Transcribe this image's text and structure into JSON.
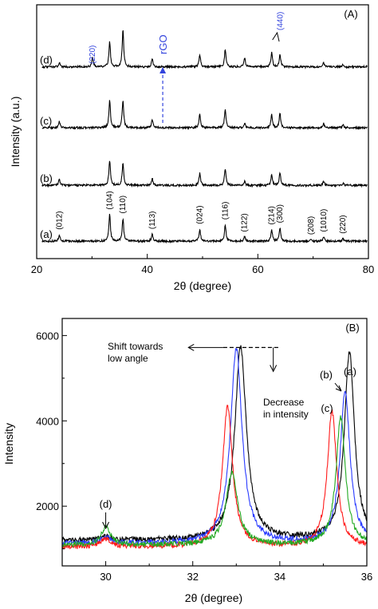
{
  "colors": {
    "black": "#000000",
    "blue": "#2a3bff",
    "red": "#ff1a1a",
    "green": "#22aa22",
    "annotation_blue": "#3344dd"
  },
  "chart_data": [
    {
      "panel_label": "(A)",
      "type": "line",
      "xlabel": "2θ (degree)",
      "ylabel": "Intensity (a.u.)",
      "xlim": [
        20,
        80
      ],
      "xticks": [
        20,
        40,
        60,
        80
      ],
      "yticks": [],
      "grid": false,
      "series": [
        {
          "name": "(a)",
          "color": "#000000",
          "offset": 0,
          "baseline": 0.4,
          "peaks": [
            [
              24.1,
              1.2
            ],
            [
              33.2,
              4.8
            ],
            [
              35.6,
              4.1
            ],
            [
              40.9,
              1.3
            ],
            [
              49.5,
              2.2
            ],
            [
              54.1,
              3.0
            ],
            [
              57.6,
              0.8
            ],
            [
              62.5,
              2.1
            ],
            [
              64.0,
              2.4
            ],
            [
              69.6,
              0.3
            ],
            [
              71.9,
              0.8
            ],
            [
              75.4,
              0.5
            ]
          ]
        },
        {
          "name": "(b)",
          "color": "#000000",
          "offset": 10,
          "baseline": 0.4,
          "peaks": [
            [
              24.1,
              1.1
            ],
            [
              33.2,
              4.5
            ],
            [
              35.6,
              4.0
            ],
            [
              40.9,
              1.2
            ],
            [
              49.5,
              2.2
            ],
            [
              54.1,
              3.0
            ],
            [
              57.6,
              0.7
            ],
            [
              62.5,
              2.0
            ],
            [
              64.0,
              2.3
            ],
            [
              71.9,
              0.7
            ],
            [
              75.4,
              0.4
            ]
          ]
        },
        {
          "name": "(c)",
          "color": "#000000",
          "offset": 20.3,
          "baseline": 0.4,
          "peaks": [
            [
              24.1,
              1.1
            ],
            [
              33.2,
              5.0
            ],
            [
              35.6,
              4.9
            ],
            [
              40.9,
              1.4
            ],
            [
              49.5,
              2.5
            ],
            [
              54.1,
              3.4
            ],
            [
              57.6,
              0.8
            ],
            [
              62.5,
              2.3
            ],
            [
              64.0,
              2.6
            ],
            [
              71.9,
              0.8
            ],
            [
              75.4,
              0.5
            ]
          ]
        },
        {
          "name": "(d)",
          "color": "#000000",
          "offset": 31.2,
          "baseline": 0.4,
          "peaks": [
            [
              24.1,
              0.8
            ],
            [
              30.1,
              1.7
            ],
            [
              33.2,
              4.5
            ],
            [
              35.6,
              6.6
            ],
            [
              40.9,
              1.4
            ],
            [
              49.5,
              2.2
            ],
            [
              54.1,
              3.1
            ],
            [
              57.6,
              1.7
            ],
            [
              62.5,
              2.6
            ],
            [
              64.0,
              2.2
            ],
            [
              71.9,
              0.8
            ],
            [
              75.4,
              0.5
            ]
          ]
        }
      ],
      "reflections": [
        {
          "label": "(012)",
          "x": 24.1
        },
        {
          "label": "(104)",
          "x": 33.2
        },
        {
          "label": "(110)",
          "x": 35.6
        },
        {
          "label": "(113)",
          "x": 40.9
        },
        {
          "label": "(024)",
          "x": 49.5
        },
        {
          "label": "(116)",
          "x": 54.1
        },
        {
          "label": "(122)",
          "x": 57.6
        },
        {
          "label": "(214)",
          "x": 62.5
        },
        {
          "label": "(300)",
          "x": 64.0
        },
        {
          "label": "(208)",
          "x": 69.6
        },
        {
          "label": "(1010)",
          "x": 71.9
        },
        {
          "label": "(220)",
          "x": 75.4
        }
      ],
      "annotations": [
        {
          "text": "(220)",
          "x": 30.1,
          "color": "#3344dd"
        },
        {
          "text": "rGO",
          "x": 42.8,
          "color": "#3344dd"
        },
        {
          "text": "(440)",
          "x": 63.2,
          "color": "#3344dd"
        }
      ]
    },
    {
      "panel_label": "(B)",
      "type": "line",
      "xlabel": "2θ (degree)",
      "ylabel": "Intensity",
      "xlim": [
        29,
        36
      ],
      "ylim": [
        600,
        6400
      ],
      "xticks": [
        30,
        32,
        34,
        36
      ],
      "yticks": [
        2000,
        4000,
        6000
      ],
      "grid": false,
      "series": [
        {
          "name": "(a)",
          "color": "#000000",
          "baseline": 1200,
          "peaks": [
            [
              30.0,
              1270,
              0.15
            ],
            [
              33.1,
              5720,
              0.16
            ],
            [
              35.6,
              5600,
              0.14
            ]
          ]
        },
        {
          "name": "(b)",
          "color": "#2a3bff",
          "baseline": 1120,
          "peaks": [
            [
              30.0,
              1250,
              0.15
            ],
            [
              33.0,
              5700,
              0.16
            ],
            [
              35.5,
              4650,
              0.14
            ]
          ]
        },
        {
          "name": "(c)",
          "color": "#ff1a1a",
          "baseline": 1040,
          "peaks": [
            [
              30.0,
              1230,
              0.15
            ],
            [
              32.8,
              4330,
              0.14
            ],
            [
              35.2,
              4220,
              0.13
            ]
          ]
        },
        {
          "name": "(d)",
          "color": "#22aa22",
          "baseline": 1090,
          "peaks": [
            [
              30.0,
              1520,
              0.12
            ],
            [
              32.9,
              2780,
              0.16
            ],
            [
              35.4,
              4070,
              0.13
            ]
          ]
        }
      ],
      "annotations": {
        "shift": "Shift towards\nlow angle",
        "decrease": "Decrease\nin intensity",
        "label_a": "(a)",
        "label_b": "(b)",
        "label_c": "(c)",
        "label_d": "(d)"
      }
    }
  ]
}
